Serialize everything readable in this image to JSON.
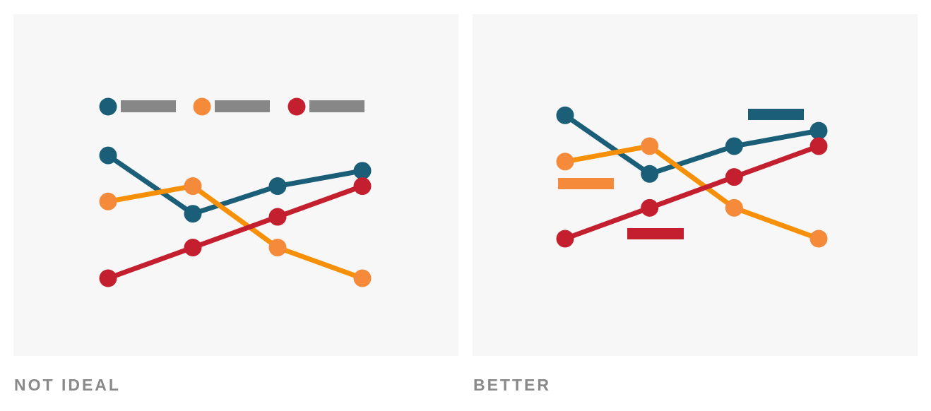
{
  "colors": {
    "teal": "#1b5e78",
    "orange_line": "#f79009",
    "orange_marker": "#f58a3a",
    "red": "#c41f2e",
    "legend_placeholder": "#878787",
    "panel_background": "#f7f7f8",
    "caption": "#898989"
  },
  "panels": [
    {
      "caption": "NOT IDEAL",
      "legend_style": "legend row above plot (marker + gray placeholder bar per series)",
      "label_placeholder_color": "#878787"
    },
    {
      "caption": "BETTER",
      "legend_style": "direct labels placed next to each line in the series color",
      "label_placeholder_color": "series"
    }
  ],
  "chart_data": [
    {
      "type": "line",
      "title": "",
      "xlabel": "",
      "ylabel": "",
      "x": [
        1,
        2,
        3,
        4
      ],
      "ylim": [
        0,
        10
      ],
      "grid": false,
      "legend": "top",
      "series": [
        {
          "color": "#1b5e78",
          "values": [
            8.0,
            4.2,
            6.0,
            7.0
          ]
        },
        {
          "color": "#f79009",
          "marker_color": "#f58a3a",
          "values": [
            5.0,
            6.0,
            2.0,
            0.0
          ]
        },
        {
          "color": "#c41f2e",
          "values": [
            0.0,
            2.0,
            4.0,
            6.0
          ]
        }
      ]
    },
    {
      "type": "line",
      "title": "",
      "xlabel": "",
      "ylabel": "",
      "x": [
        1,
        2,
        3,
        4
      ],
      "ylim": [
        0,
        10
      ],
      "grid": false,
      "legend": "direct labels next to lines",
      "series": [
        {
          "color": "#1b5e78",
          "values": [
            8.0,
            4.2,
            6.0,
            7.0
          ]
        },
        {
          "color": "#f79009",
          "marker_color": "#f58a3a",
          "values": [
            5.0,
            6.0,
            2.0,
            0.0
          ]
        },
        {
          "color": "#c41f2e",
          "values": [
            0.0,
            2.0,
            4.0,
            6.0
          ]
        }
      ]
    }
  ]
}
